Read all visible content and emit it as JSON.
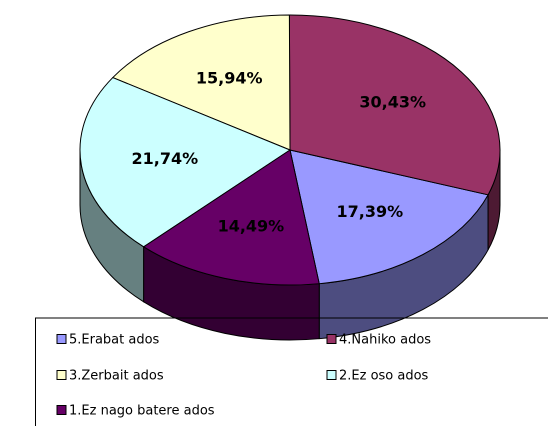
{
  "chart_data": {
    "type": "pie3d",
    "categories": [
      "5.Erabat ados",
      "4.Nahiko ados",
      "3.Zerbait ados",
      "2.Ez oso ados",
      "1.Ez nago batere ados"
    ],
    "values": [
      17.39,
      30.43,
      15.94,
      21.74,
      14.49
    ],
    "value_labels": [
      "17,39%",
      "30,43%",
      "15,94%",
      "21,74%",
      "14,49%"
    ],
    "colors": [
      "#9999ff",
      "#993366",
      "#ffffcc",
      "#ccffff",
      "#660066"
    ]
  }
}
